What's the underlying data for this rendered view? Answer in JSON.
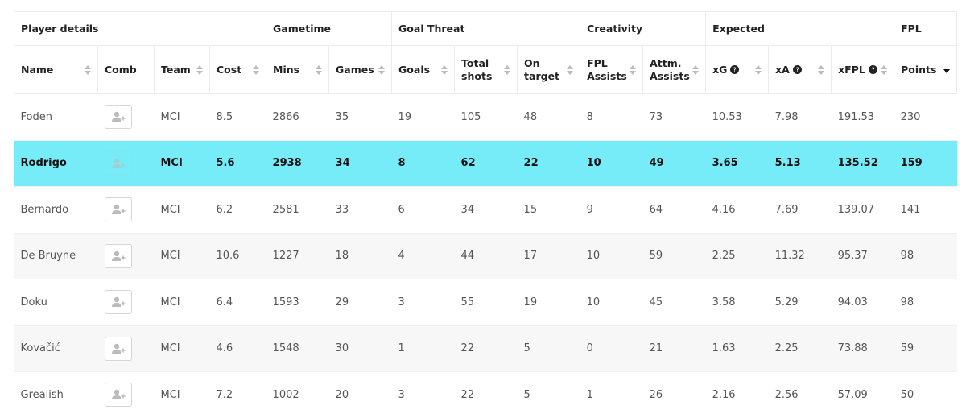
{
  "table": {
    "groups": [
      {
        "label": "Player details",
        "columns": [
          "Name",
          "Comb",
          "Team",
          "Cost"
        ]
      },
      {
        "label": "Gametime",
        "columns": [
          "Mins",
          "Games"
        ]
      },
      {
        "label": "Goal Threat",
        "columns": [
          "Goals",
          "Total shots",
          "On target"
        ]
      },
      {
        "label": "Creativity",
        "columns": [
          "FPL Assists",
          "Attm. Assists"
        ]
      },
      {
        "label": "Expected",
        "columns": [
          "xG",
          "xA",
          "xFPL"
        ]
      },
      {
        "label": "FPL",
        "columns": [
          "Points"
        ]
      }
    ],
    "info_columns": [
      "xG",
      "xA",
      "xFPL"
    ],
    "sort": {
      "column": "Points",
      "direction": "desc"
    },
    "highlighted_row": 1,
    "rows": [
      [
        "Foden",
        null,
        "MCI",
        8.5,
        2866,
        35,
        19,
        105,
        48,
        8,
        73,
        10.53,
        7.98,
        191.53,
        230
      ],
      [
        "Rodrigo",
        null,
        "MCI",
        5.6,
        2938,
        34,
        8,
        62,
        22,
        10,
        49,
        3.65,
        5.13,
        135.52,
        159
      ],
      [
        "Bernardo",
        null,
        "MCI",
        6.2,
        2581,
        33,
        6,
        34,
        15,
        9,
        64,
        4.16,
        7.69,
        139.07,
        141
      ],
      [
        "De Bruyne",
        null,
        "MCI",
        10.6,
        1227,
        18,
        4,
        44,
        17,
        10,
        59,
        2.25,
        11.32,
        95.37,
        98
      ],
      [
        "Doku",
        null,
        "MCI",
        6.4,
        1593,
        29,
        3,
        55,
        19,
        10,
        45,
        3.58,
        5.29,
        94.03,
        98
      ],
      [
        "Kovačić",
        null,
        "MCI",
        4.6,
        1548,
        30,
        1,
        22,
        5,
        0,
        21,
        1.63,
        2.25,
        73.88,
        59
      ],
      [
        "Grealish",
        null,
        "MCI",
        7.2,
        1002,
        20,
        3,
        22,
        5,
        1,
        26,
        2.16,
        2.56,
        57.09,
        50
      ]
    ]
  }
}
